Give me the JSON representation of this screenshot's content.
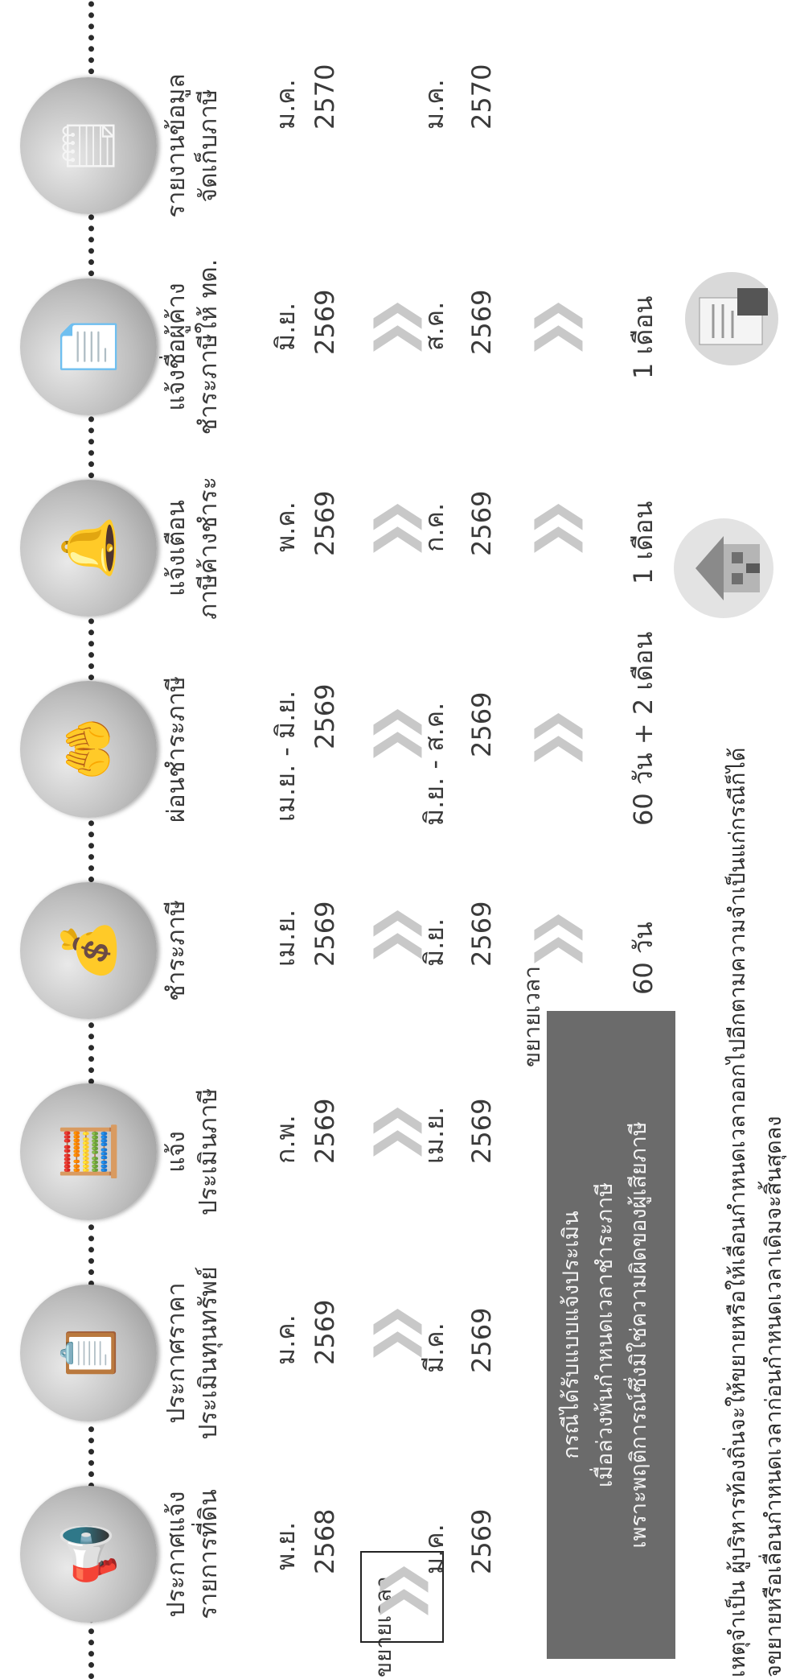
{
  "timeline": [
    {
      "icon": "megaphone-icon",
      "glyph": "📢",
      "title_lines": [
        "ประกาศแจ้ง",
        "รายการที่ดิน"
      ]
    },
    {
      "icon": "clipboard-icon",
      "glyph": "📋",
      "title_lines": [
        "ประกาศราคา",
        "ประเมินทุนทรัพย์"
      ]
    },
    {
      "icon": "tax-calculator-icon",
      "glyph": "🧮",
      "title_lines": [
        "แจ้ง",
        "ประเมินภาษี"
      ]
    },
    {
      "icon": "money-payment-icon",
      "glyph": "💰",
      "title_lines": [
        "ชำระภาษี"
      ]
    },
    {
      "icon": "coin-hand-icon",
      "glyph": "🤲",
      "title_lines": [
        "ผ่อนชำระภาษี"
      ]
    },
    {
      "icon": "alarm-bell-icon",
      "glyph": "🔔",
      "title_lines": [
        "แจ้งเตือน",
        "ภาษีค้างชำระ"
      ]
    },
    {
      "icon": "tax-form-icon",
      "glyph": "📄",
      "title_lines": [
        "แจ้งชื่อผู้ค้าง",
        "ชำระภาษีให้ ทด."
      ]
    },
    {
      "icon": "report-checklist-icon",
      "glyph": "🗒",
      "title_lines": [
        "รายงานข้อมูล",
        "จัดเก็บภาษี"
      ]
    }
  ],
  "original_dates": [
    {
      "month": "พ.ย.",
      "year": "2568"
    },
    {
      "month": "ม.ค.",
      "year": "2569"
    },
    {
      "month": "ก.พ.",
      "year": "2569"
    },
    {
      "month": "เม.ย.",
      "year": "2569"
    },
    {
      "month": "เม.ย. - มิ.ย.",
      "year": "2569"
    },
    {
      "month": "พ.ค.",
      "year": "2569"
    },
    {
      "month": "มิ.ย.",
      "year": "2569"
    },
    {
      "month": "ม.ค.",
      "year": "2570"
    }
  ],
  "extended_dates": [
    {
      "month": "ม.ค.",
      "year": "2569"
    },
    {
      "month": "มี.ค.",
      "year": "2569"
    },
    {
      "month": "เม.ย.",
      "year": "2569"
    },
    {
      "month": "มิ.ย.",
      "year": "2569"
    },
    {
      "month": "มิ.ย. - ส.ค.",
      "year": "2569"
    },
    {
      "month": "ก.ค.",
      "year": "2569"
    },
    {
      "month": "ส.ค.",
      "year": "2569"
    },
    {
      "month": "ม.ค.",
      "year": "2570"
    }
  ],
  "extend_label_left": "ขยายเวลา",
  "extend_label_right": "ขยายเวลา",
  "chevron": "❯❯",
  "durations": [
    "60 วัน",
    "60 วัน + 2 เดือน",
    "1 เดือน",
    "1 เดือน"
  ],
  "panel_lines": [
    "กรณีได้รับแบบแจ้งประเมิน",
    "เมื่อล่วงพ้นกำหนดเวลาชำระภาษี",
    "เพราะพฤติการณ์ซึ่งมิใช่ความผิดของผู้เสียภาษี"
  ],
  "footer_lines": [
    "เหตุจำเป็น ผู้บริหารท้องถิ่นจะให้ขยายหรือให้เลื่อนกำหนดเวลาออกไปอีกตามความจำเป็นแก่กรณีก็ได้",
    "จขยายหรือเลื่อนกำหนดเวลาก่อนกำหนดเวลาเดิมจะสิ้นสุดลง"
  ],
  "colors": {
    "panel": "#6b6b6b",
    "chevron": "#c8c8c8",
    "circle": "#bdbdbd"
  }
}
